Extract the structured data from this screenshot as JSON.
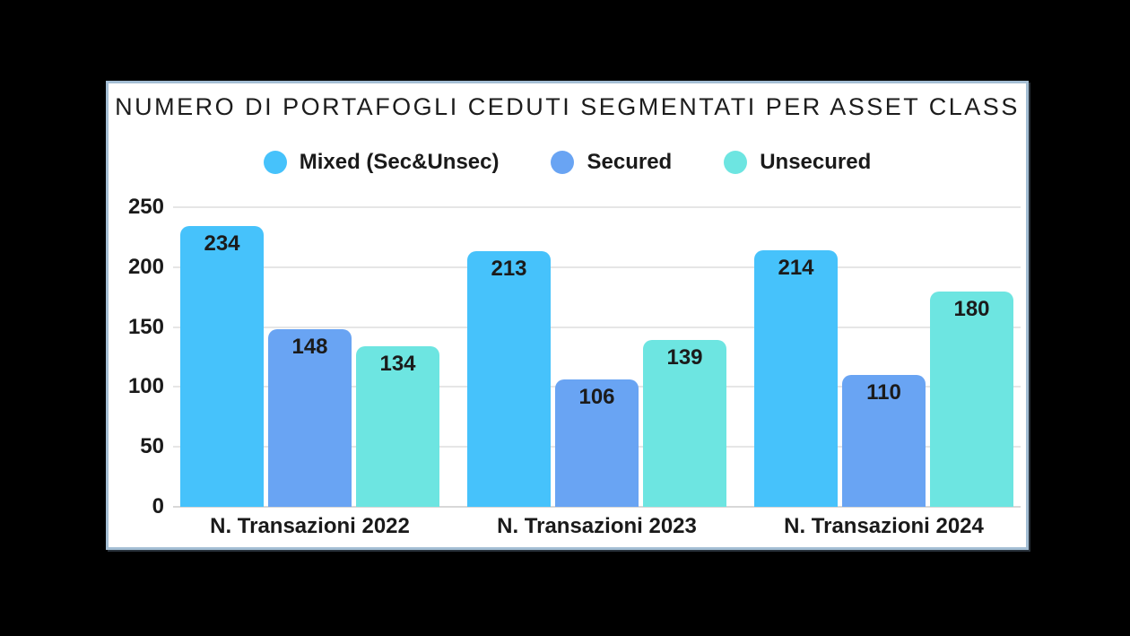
{
  "title": "NUMERO DI PORTAFOGLI CEDUTI SEGMENTATI PER ASSET CLASS",
  "colors": {
    "mixed": "#46c2fb",
    "secured": "#69a4f3",
    "unsecured": "#6de5e1",
    "card_background": "#ffffff",
    "card_border": "#a4bed4",
    "page_background": "#000000",
    "text": "#1a1a1a",
    "gridline": "#e6e6e6"
  },
  "chart_data": {
    "type": "bar",
    "title": "NUMERO DI PORTAFOGLI CEDUTI SEGMENTATI PER ASSET CLASS",
    "categories": [
      "N. Transazioni 2022",
      "N. Transazioni 2023",
      "N. Transazioni 2024"
    ],
    "series": [
      {
        "name": "Mixed (Sec&Unsec)",
        "color": "#46c2fb",
        "values": [
          234,
          213,
          214
        ]
      },
      {
        "name": "Secured",
        "color": "#69a4f3",
        "values": [
          148,
          106,
          110
        ]
      },
      {
        "name": "Unsecured",
        "color": "#6de5e1",
        "values": [
          134,
          139,
          180
        ]
      }
    ],
    "yticks": [
      0,
      50,
      100,
      150,
      200,
      250
    ],
    "ylim": [
      0,
      250
    ],
    "xlabel": "",
    "ylabel": "",
    "grid": true,
    "legend_position": "top",
    "value_labels": "inside-top"
  }
}
